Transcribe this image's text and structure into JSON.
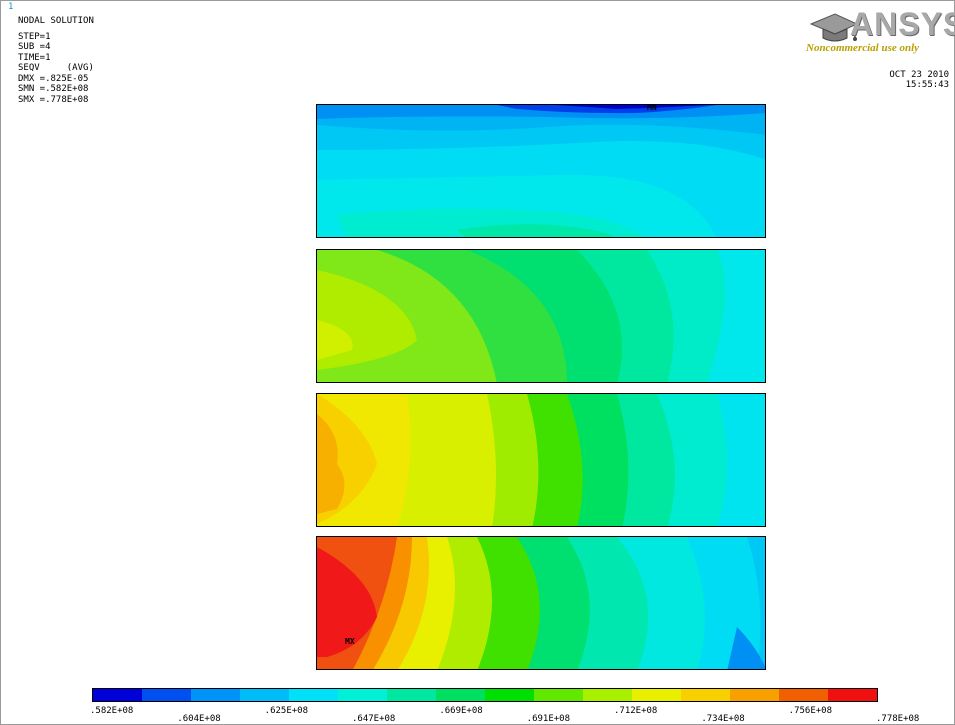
{
  "window_number": "1",
  "info": {
    "title": "NODAL SOLUTION",
    "lines": [
      "STEP=1",
      "SUB =4",
      "TIME=1",
      "SEQV     (AVG)",
      "DMX =.825E-05",
      "SMN =.582E+08",
      "SMX =.778E+08"
    ]
  },
  "logo": {
    "name": "ANSYS",
    "subtitle": "Noncommercial use only",
    "icon": "graduation-cap-icon"
  },
  "datetime": {
    "date": "OCT 23 2010",
    "time": "15:55:43"
  },
  "markers": {
    "min": "MN",
    "max": "MX"
  },
  "legend": {
    "colors": [
      "#0000d8",
      "#0050f0",
      "#0094f8",
      "#00bcf8",
      "#00e0f8",
      "#00f0d8",
      "#00e8a0",
      "#00e060",
      "#00e000",
      "#60e800",
      "#a8f000",
      "#e8f000",
      "#f8d000",
      "#f8a000",
      "#f06000",
      "#f01010"
    ],
    "labels": [
      ".582E+08",
      ".604E+08",
      ".625E+08",
      ".647E+08",
      ".669E+08",
      ".691E+08",
      ".712E+08",
      ".734E+08",
      ".756E+08",
      ".778E+08"
    ]
  }
}
